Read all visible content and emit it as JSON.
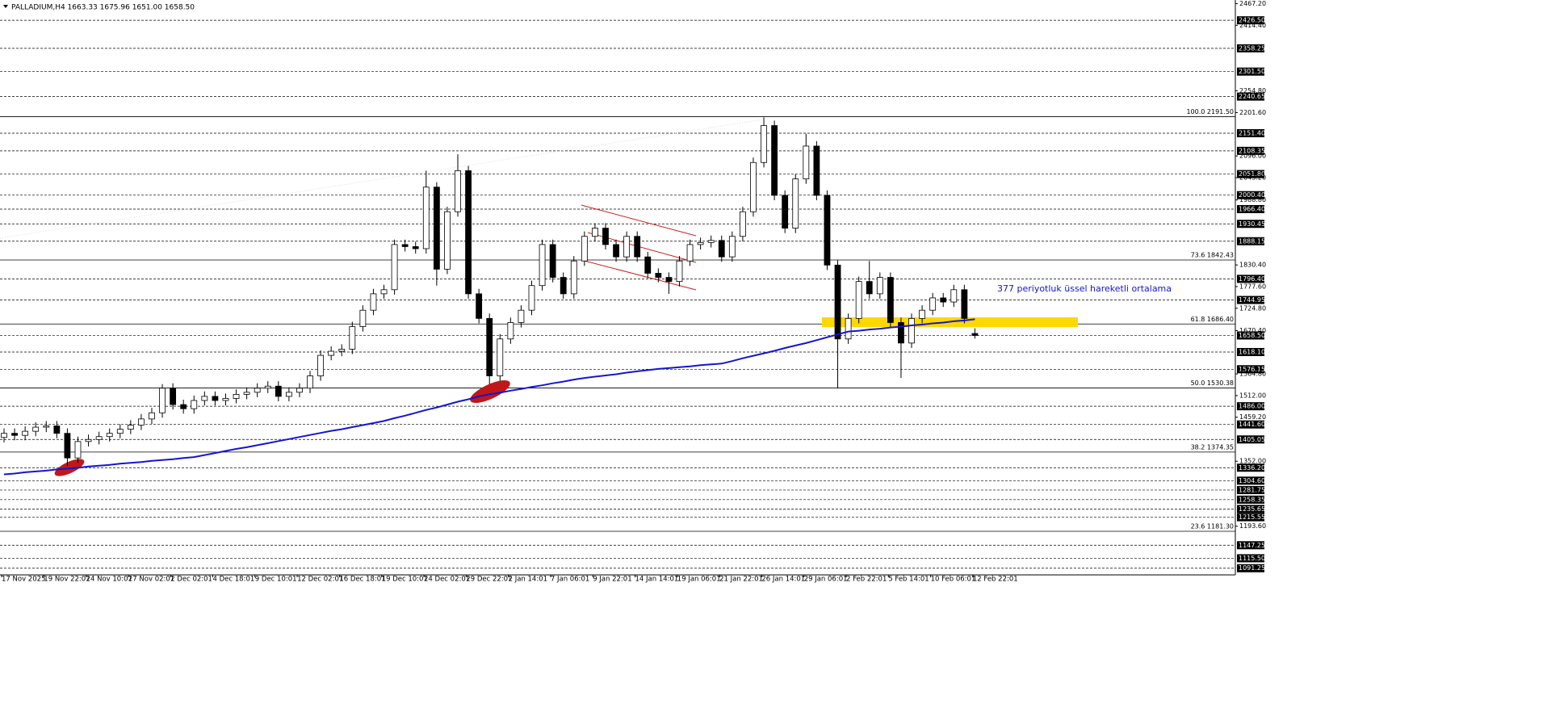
{
  "chart_data": {
    "type": "candlestick",
    "title": "PALLADIUM,H4  1663.33 1675.96 1651.00 1658.50",
    "annotation": "377 periyotluk üssel hareketli ortalama",
    "categories": [
      "17 Nov 2025",
      "19 Nov 22:01",
      "24 Nov 10:01",
      "27 Nov 02:01",
      "2 Dec 02:01",
      "4 Dec 18:01",
      "9 Dec 10:01",
      "12 Dec 02:01",
      "16 Dec 18:01",
      "19 Dec 10:01",
      "24 Dec 02:01",
      "29 Dec 22:01",
      "2 Jan 14:01",
      "7 Jan 06:01",
      "9 Jan 22:01",
      "14 Jan 14:01",
      "19 Jan 06:01",
      "21 Jan 22:01",
      "26 Jan 14:01",
      "29 Jan 06:01",
      "2 Feb 22:01",
      "5 Feb 14:01",
      "10 Feb 06:01",
      "12 Feb 22:01"
    ],
    "ylim": [
      1075,
      2476
    ],
    "yticks": [
      {
        "value": 2467.2,
        "label": "2467.20"
      },
      {
        "value": 2414.4,
        "label": "2414.40"
      },
      {
        "value": 2254.8,
        "label": "2254.80"
      },
      {
        "value": 2201.6,
        "label": "2201.60"
      },
      {
        "value": 2096,
        "label": "2096.00"
      },
      {
        "value": 2043.2,
        "label": "2043.20"
      },
      {
        "value": 1988.8,
        "label": "1988.80"
      },
      {
        "value": 1830.4,
        "label": "1830.40"
      },
      {
        "value": 1777.6,
        "label": "1777.60"
      },
      {
        "value": 1724.8,
        "label": "1724.80"
      },
      {
        "value": 1670.4,
        "label": "1670.40"
      },
      {
        "value": 1564.8,
        "label": "1564.80"
      },
      {
        "value": 1512,
        "label": "1512.00"
      },
      {
        "value": 1459.2,
        "label": "1459.20"
      },
      {
        "value": 1352,
        "label": "1352.00"
      },
      {
        "value": 1193.6,
        "label": "1193.60"
      }
    ],
    "levels": [
      {
        "value": 2426.5,
        "label": "2426.50"
      },
      {
        "value": 2358.25,
        "label": "2358.25"
      },
      {
        "value": 2301.5,
        "label": "2301.50"
      },
      {
        "value": 2240.65,
        "label": "2240.65"
      },
      {
        "value": 2151.4,
        "label": "2151.40"
      },
      {
        "value": 2108.35,
        "label": "2108.35"
      },
      {
        "value": 2051.8,
        "label": "2051.80"
      },
      {
        "value": 2000.4,
        "label": "2000.40"
      },
      {
        "value": 1966.4,
        "label": "1966.40"
      },
      {
        "value": 1930.45,
        "label": "1930.45"
      },
      {
        "value": 1888.15,
        "label": "1888.15"
      },
      {
        "value": 1796.4,
        "label": "1796.40"
      },
      {
        "value": 1744.95,
        "label": "1744.95"
      },
      {
        "value": 1658.5,
        "label": "1658.50"
      },
      {
        "value": 1618.1,
        "label": "1618.10"
      },
      {
        "value": 1576.15,
        "label": "1576.15"
      },
      {
        "value": 1486,
        "label": "1486.00"
      },
      {
        "value": 1441.6,
        "label": "1441.60"
      },
      {
        "value": 1405.05,
        "label": "1405.05"
      },
      {
        "value": 1336.2,
        "label": "1336.20"
      },
      {
        "value": 1304.6,
        "label": "1304.60"
      },
      {
        "value": 1281.75,
        "label": "1281.75"
      },
      {
        "value": 1258.35,
        "label": "1258.35"
      },
      {
        "value": 1235.65,
        "label": "1235.65"
      },
      {
        "value": 1215.55,
        "label": "1215.55"
      },
      {
        "value": 1147.25,
        "label": "1147.25"
      },
      {
        "value": 1115.5,
        "label": "1115.50"
      },
      {
        "value": 1091.25,
        "label": "1091.25"
      }
    ],
    "fib_levels": [
      {
        "value": 2191.5,
        "label": "100.0 2191.50"
      },
      {
        "value": 1842.43,
        "label": "73.6 1842.43"
      },
      {
        "value": 1686.4,
        "label": "61.8 1686.40"
      },
      {
        "value": 1530.38,
        "label": "50.0 1530.38"
      },
      {
        "value": 1374.35,
        "label": "38.2 1374.35"
      },
      {
        "value": 1181.3,
        "label": "23.6 1181.30"
      }
    ],
    "ema": {
      "color": "#1515d0",
      "values": [
        1320,
        1322,
        1325,
        1327,
        1329,
        1332,
        1334,
        1336,
        1339,
        1341,
        1343,
        1346,
        1348,
        1350,
        1353,
        1355,
        1357,
        1360,
        1362,
        1367,
        1372,
        1377,
        1382,
        1386,
        1391,
        1396,
        1401,
        1406,
        1411,
        1416,
        1421,
        1426,
        1430,
        1435,
        1440,
        1445,
        1450,
        1457,
        1463,
        1470,
        1477,
        1483,
        1490,
        1497,
        1503,
        1510,
        1515,
        1519,
        1524,
        1528,
        1533,
        1537,
        1542,
        1546,
        1551,
        1555,
        1558,
        1561,
        1564,
        1568,
        1571,
        1574,
        1577,
        1579,
        1581,
        1583,
        1586,
        1588,
        1590,
        1596,
        1603,
        1609,
        1615,
        1621,
        1628,
        1634,
        1640,
        1647,
        1654,
        1661,
        1668,
        1670,
        1673,
        1675,
        1678,
        1680,
        1683,
        1685,
        1688,
        1690,
        1693,
        1695,
        1698
      ]
    },
    "candles": [
      [
        1410,
        1432,
        1398,
        1420
      ],
      [
        1420,
        1432,
        1403,
        1415
      ],
      [
        1415,
        1437,
        1403,
        1425
      ],
      [
        1425,
        1447,
        1413,
        1435
      ],
      [
        1435,
        1450,
        1423,
        1438
      ],
      [
        1438,
        1450,
        1408,
        1420
      ],
      [
        1420,
        1432,
        1340,
        1360
      ],
      [
        1360,
        1412,
        1348,
        1400
      ],
      [
        1400,
        1417,
        1388,
        1405
      ],
      [
        1405,
        1424,
        1393,
        1412
      ],
      [
        1412,
        1432,
        1400,
        1420
      ],
      [
        1420,
        1442,
        1408,
        1430
      ],
      [
        1430,
        1452,
        1418,
        1440
      ],
      [
        1440,
        1467,
        1428,
        1455
      ],
      [
        1455,
        1482,
        1443,
        1470
      ],
      [
        1470,
        1540,
        1458,
        1530
      ],
      [
        1530,
        1542,
        1478,
        1490
      ],
      [
        1490,
        1502,
        1468,
        1480
      ],
      [
        1480,
        1512,
        1468,
        1500
      ],
      [
        1500,
        1522,
        1488,
        1510
      ],
      [
        1510,
        1522,
        1488,
        1500
      ],
      [
        1500,
        1517,
        1488,
        1505
      ],
      [
        1505,
        1527,
        1493,
        1515
      ],
      [
        1515,
        1532,
        1503,
        1520
      ],
      [
        1520,
        1542,
        1508,
        1530
      ],
      [
        1530,
        1547,
        1518,
        1535
      ],
      [
        1535,
        1547,
        1498,
        1510
      ],
      [
        1510,
        1532,
        1498,
        1520
      ],
      [
        1520,
        1542,
        1508,
        1530
      ],
      [
        1530,
        1572,
        1518,
        1560
      ],
      [
        1560,
        1622,
        1548,
        1610
      ],
      [
        1610,
        1632,
        1598,
        1620
      ],
      [
        1620,
        1637,
        1608,
        1625
      ],
      [
        1625,
        1692,
        1613,
        1680
      ],
      [
        1680,
        1732,
        1668,
        1720
      ],
      [
        1720,
        1772,
        1708,
        1760
      ],
      [
        1760,
        1782,
        1748,
        1770
      ],
      [
        1770,
        1892,
        1758,
        1880
      ],
      [
        1880,
        1892,
        1863,
        1875
      ],
      [
        1875,
        1887,
        1858,
        1870
      ],
      [
        1870,
        2060,
        1858,
        2020
      ],
      [
        2020,
        2032,
        1780,
        1820
      ],
      [
        1820,
        1972,
        1808,
        1960
      ],
      [
        1960,
        2100,
        1948,
        2060
      ],
      [
        2060,
        2072,
        1748,
        1760
      ],
      [
        1760,
        1772,
        1688,
        1700
      ],
      [
        1700,
        1712,
        1540,
        1560
      ],
      [
        1560,
        1662,
        1548,
        1650
      ],
      [
        1650,
        1702,
        1638,
        1690
      ],
      [
        1690,
        1732,
        1678,
        1720
      ],
      [
        1720,
        1792,
        1708,
        1780
      ],
      [
        1780,
        1892,
        1768,
        1880
      ],
      [
        1880,
        1892,
        1788,
        1800
      ],
      [
        1800,
        1812,
        1748,
        1760
      ],
      [
        1760,
        1852,
        1748,
        1840
      ],
      [
        1840,
        1912,
        1828,
        1900
      ],
      [
        1900,
        1932,
        1888,
        1920
      ],
      [
        1920,
        1932,
        1868,
        1880
      ],
      [
        1880,
        1892,
        1838,
        1850
      ],
      [
        1850,
        1912,
        1838,
        1900
      ],
      [
        1900,
        1912,
        1838,
        1850
      ],
      [
        1850,
        1862,
        1798,
        1810
      ],
      [
        1810,
        1822,
        1788,
        1800
      ],
      [
        1800,
        1812,
        1760,
        1790
      ],
      [
        1790,
        1852,
        1778,
        1840
      ],
      [
        1840,
        1892,
        1828,
        1880
      ],
      [
        1880,
        1897,
        1868,
        1885
      ],
      [
        1885,
        1902,
        1873,
        1890
      ],
      [
        1890,
        1902,
        1838,
        1850
      ],
      [
        1850,
        1912,
        1838,
        1900
      ],
      [
        1900,
        1972,
        1888,
        1960
      ],
      [
        1960,
        2092,
        1948,
        2080
      ],
      [
        2080,
        2190,
        2068,
        2170
      ],
      [
        2170,
        2182,
        1988,
        2000
      ],
      [
        2000,
        2012,
        1908,
        1920
      ],
      [
        1920,
        2052,
        1908,
        2040
      ],
      [
        2040,
        2150,
        2028,
        2120
      ],
      [
        2120,
        2132,
        1988,
        2000
      ],
      [
        2000,
        2012,
        1818,
        1830
      ],
      [
        1830,
        1842,
        1530,
        1650
      ],
      [
        1650,
        1712,
        1638,
        1700
      ],
      [
        1700,
        1802,
        1688,
        1790
      ],
      [
        1790,
        1840,
        1748,
        1760
      ],
      [
        1760,
        1812,
        1748,
        1800
      ],
      [
        1800,
        1812,
        1678,
        1690
      ],
      [
        1690,
        1702,
        1555,
        1640
      ],
      [
        1640,
        1712,
        1628,
        1700
      ],
      [
        1700,
        1732,
        1688,
        1720
      ],
      [
        1720,
        1762,
        1708,
        1750
      ],
      [
        1750,
        1762,
        1728,
        1740
      ],
      [
        1740,
        1782,
        1728,
        1770
      ],
      [
        1770,
        1782,
        1688,
        1700
      ],
      [
        1663.33,
        1675.96,
        1651,
        1658.5
      ]
    ]
  }
}
